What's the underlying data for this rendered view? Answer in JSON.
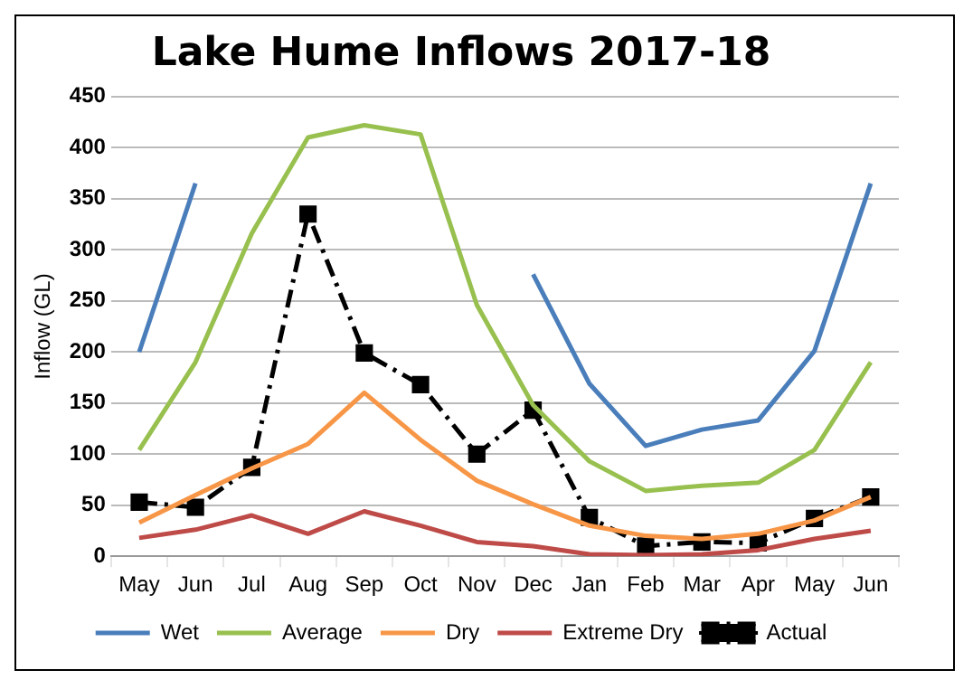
{
  "chart_data": {
    "type": "line",
    "title": "Lake Hume Inflows 2017-18",
    "ylabel": "Inflow (GL)",
    "categories": [
      "May",
      "Jun",
      "Jul",
      "Aug",
      "Sep",
      "Oct",
      "Nov",
      "Dec",
      "Jan",
      "Feb",
      "Mar",
      "Apr",
      "May",
      "Jun"
    ],
    "series": [
      {
        "name": "Wet",
        "color": "#4a7ebb",
        "values": [
          200,
          365,
          null,
          null,
          null,
          null,
          null,
          276,
          169,
          108,
          124,
          133,
          201,
          365
        ]
      },
      {
        "name": "Average",
        "color": "#98c04f",
        "values": [
          104,
          190,
          316,
          410,
          422,
          413,
          246,
          148,
          93,
          64,
          69,
          72,
          104,
          190
        ]
      },
      {
        "name": "Dry",
        "color": "#f79646",
        "values": [
          33,
          60,
          86,
          110,
          160,
          114,
          74,
          51,
          30,
          20,
          17,
          22,
          35,
          58
        ]
      },
      {
        "name": "Extreme Dry",
        "color": "#be4b48",
        "values": [
          18,
          26,
          40,
          22,
          44,
          30,
          14,
          10,
          2,
          1,
          2,
          6,
          17,
          25
        ]
      },
      {
        "name": "Actual",
        "color": "#000000",
        "values": [
          53,
          48,
          87,
          335,
          199,
          168,
          100,
          143,
          38,
          10,
          14,
          13,
          37,
          58
        ],
        "marker": "square",
        "line_style": "dashed"
      }
    ],
    "ylim": [
      0,
      450
    ],
    "yticks": [
      0,
      50,
      100,
      150,
      200,
      250,
      300,
      350,
      400,
      450
    ],
    "grid": "y",
    "legend": "bottom",
    "marker": "none",
    "line_style": "solid"
  }
}
